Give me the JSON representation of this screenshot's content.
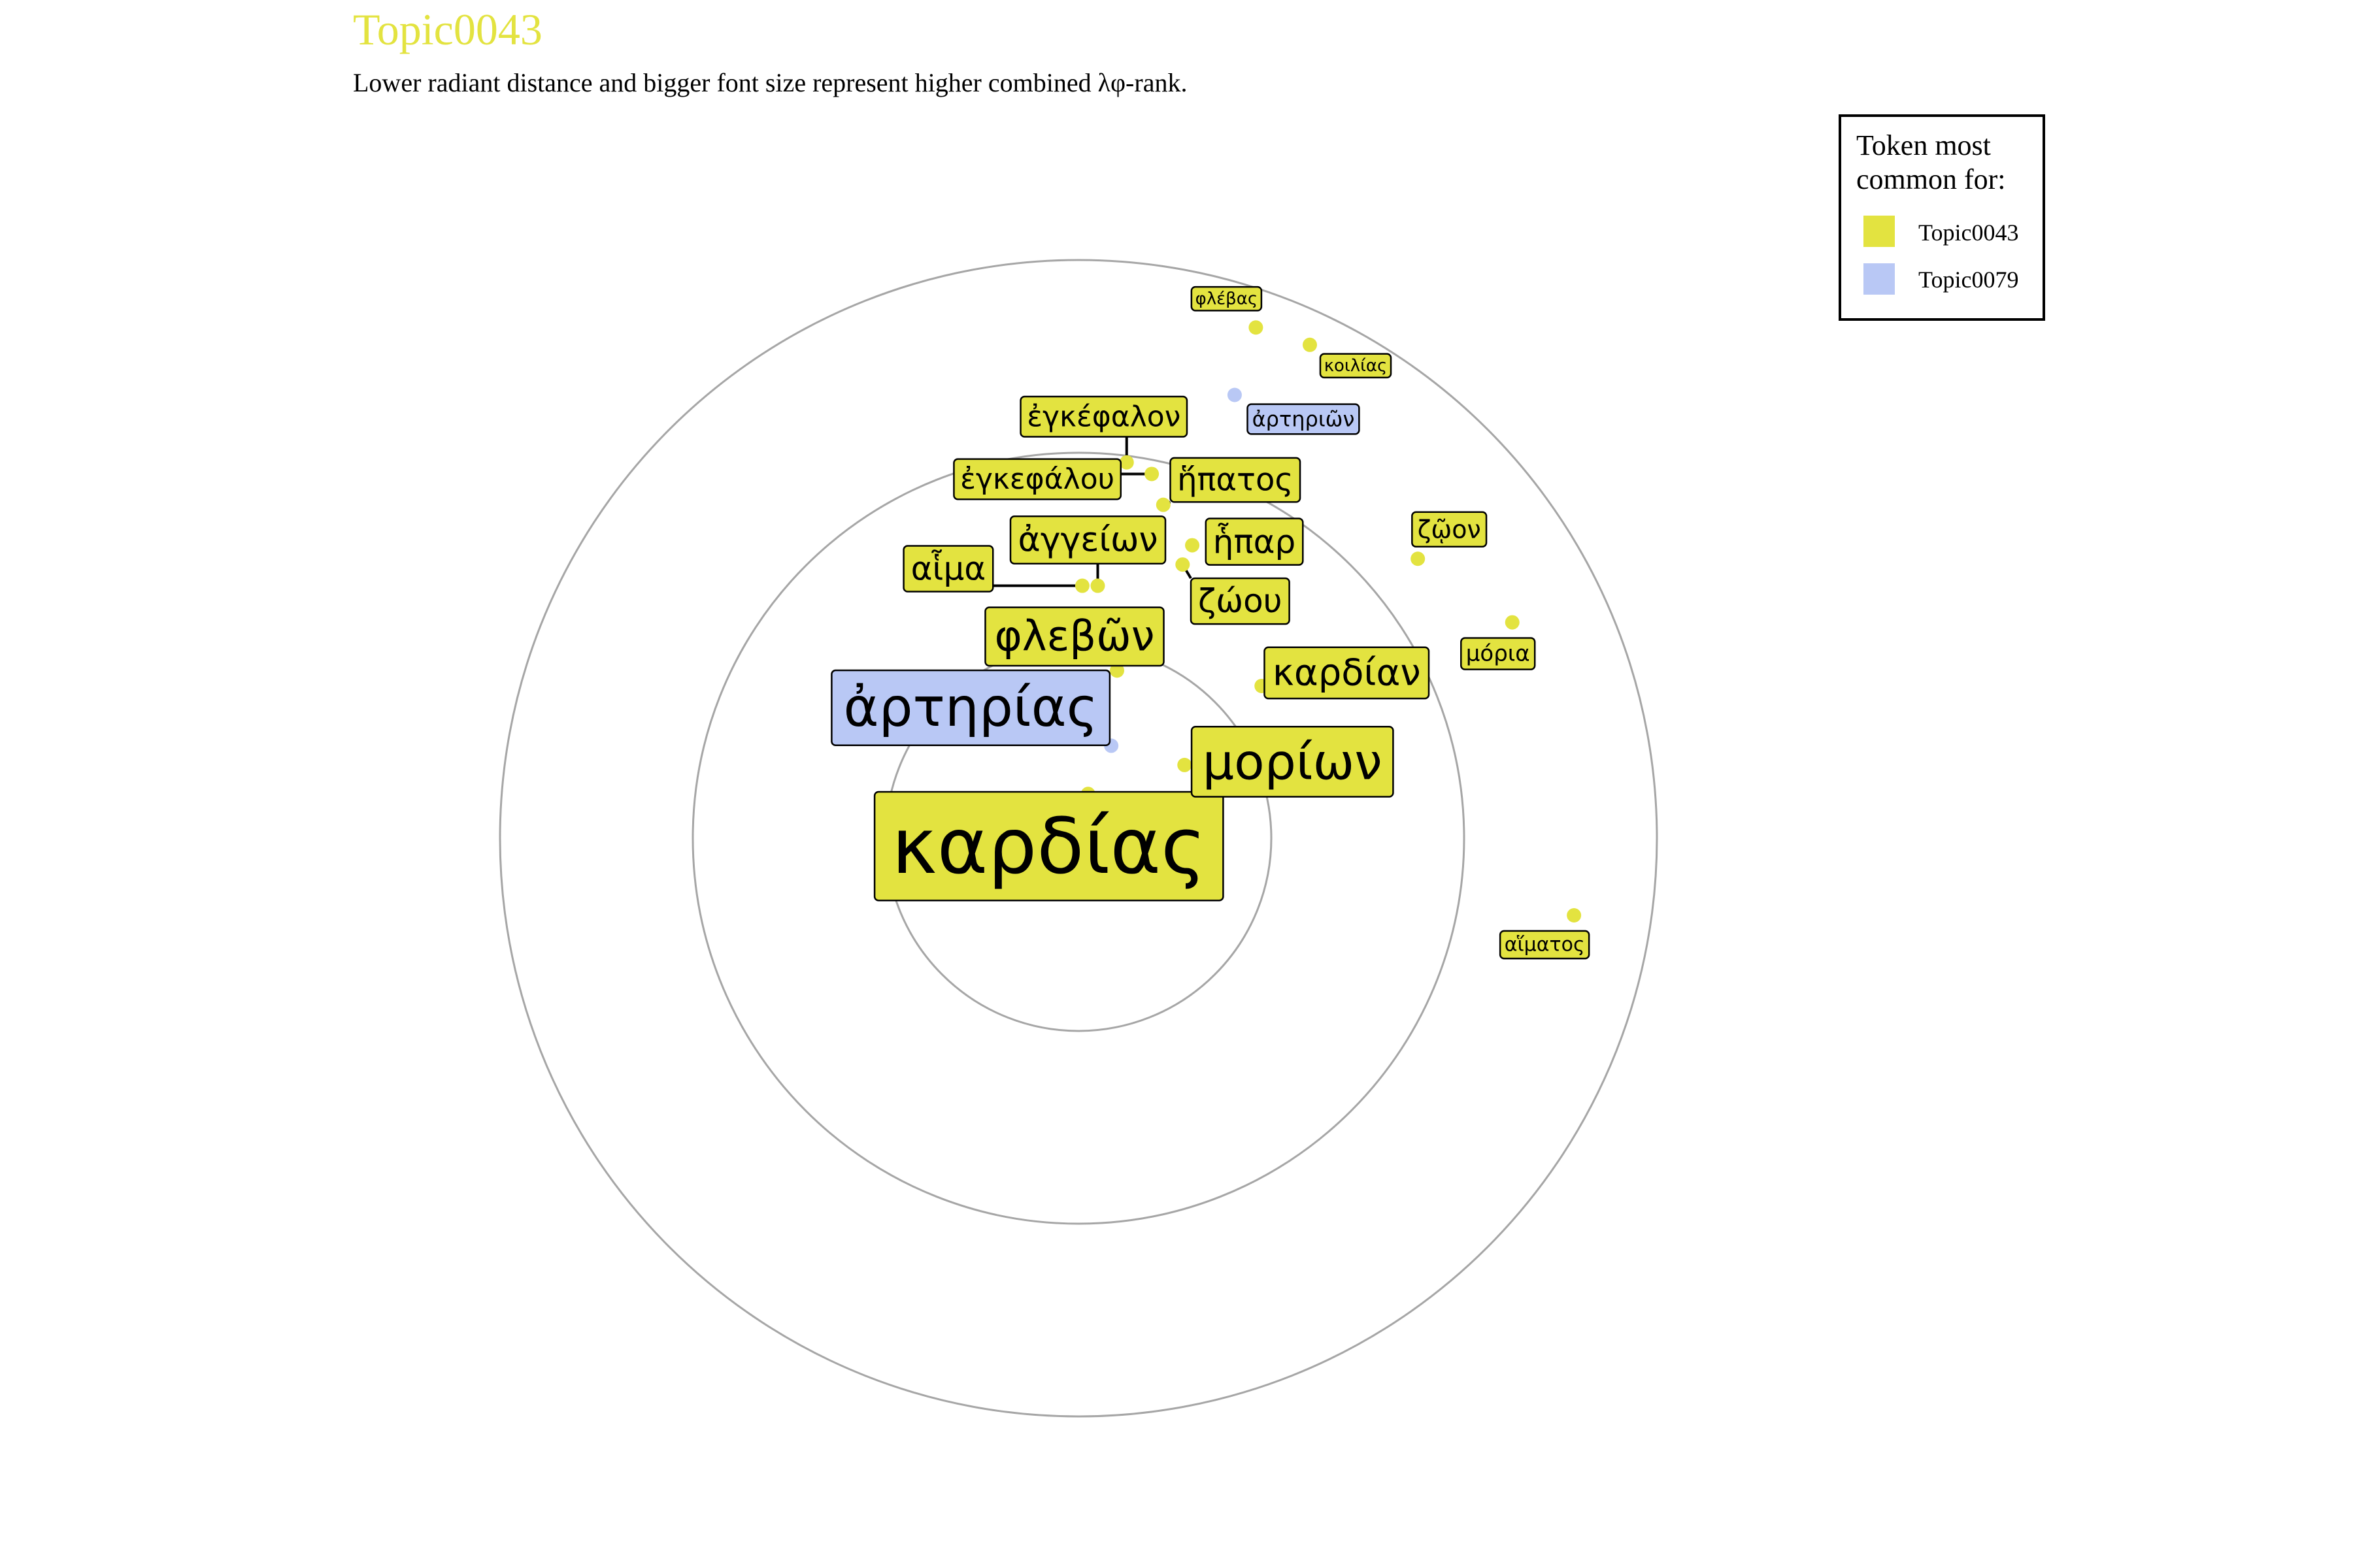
{
  "colors": {
    "Topic0043": "#e3e340",
    "Topic0079": "#b9c8f5",
    "title": "#e3e340",
    "ring": "#a6a6a6",
    "text": "#000000"
  },
  "chart_data": {
    "type": "scatter",
    "title": "Topic0043",
    "subtitle": "Lower radiant distance and bigger font size represent higher combined λφ-rank.",
    "rings": 3,
    "legend": {
      "title_lines": [
        "Token most",
        "common for:"
      ],
      "placement": "top-right",
      "entries": [
        {
          "name": "Topic0043"
        },
        {
          "name": "Topic0079"
        }
      ]
    },
    "tokens": [
      {
        "token": "καρδίας",
        "topic": "Topic0043",
        "rank": 1,
        "x": 0.05,
        "y": 0.23
      },
      {
        "token": "ἀρτηρίας",
        "topic": "Topic0079",
        "rank": 2,
        "x": 0.17,
        "y": 0.48
      },
      {
        "token": "μορίων",
        "topic": "Topic0043",
        "rank": 3,
        "x": 0.55,
        "y": 0.38
      },
      {
        "token": "φλεβῶν",
        "topic": "Topic0043",
        "rank": 4,
        "x": 0.2,
        "y": 0.87
      },
      {
        "token": "καρδίαν",
        "topic": "Topic0043",
        "rank": 5,
        "x": 0.95,
        "y": 0.79
      },
      {
        "token": "ζώου",
        "topic": "Topic0043",
        "rank": 6,
        "x": 0.54,
        "y": 1.42
      },
      {
        "token": "ἀγγείων",
        "topic": "Topic0043",
        "rank": 7,
        "x": 0.1,
        "y": 1.31
      },
      {
        "token": "αἷμα",
        "topic": "Topic0043",
        "rank": 8,
        "x": 0.02,
        "y": 1.31
      },
      {
        "token": "ἧπαρ",
        "topic": "Topic0043",
        "rank": 9,
        "x": 0.59,
        "y": 1.52
      },
      {
        "token": "ἥπατος",
        "topic": "Topic0043",
        "rank": 10,
        "x": 0.44,
        "y": 1.73
      },
      {
        "token": "ἐγκεφάλου",
        "topic": "Topic0043",
        "rank": 11,
        "x": 0.38,
        "y": 1.89
      },
      {
        "token": "ἐγκέφαλον",
        "topic": "Topic0043",
        "rank": 12,
        "x": 0.25,
        "y": 1.95
      },
      {
        "token": "ζῷον",
        "topic": "Topic0043",
        "rank": 13,
        "x": 1.76,
        "y": 1.45
      },
      {
        "token": "μόρια",
        "topic": "Topic0043",
        "rank": 14,
        "x": 2.25,
        "y": 1.12
      },
      {
        "token": "ἀρτηριῶν",
        "topic": "Topic0079",
        "rank": 15,
        "x": 0.81,
        "y": 2.3
      },
      {
        "token": "κοιλίας",
        "topic": "Topic0043",
        "rank": 16,
        "x": 1.2,
        "y": 2.56
      },
      {
        "token": "φλέβας",
        "topic": "Topic0043",
        "rank": 17,
        "x": 0.92,
        "y": 2.65
      },
      {
        "token": "αἵματος",
        "topic": "Topic0043",
        "rank": 18,
        "x": 2.57,
        "y": -0.4
      }
    ]
  }
}
